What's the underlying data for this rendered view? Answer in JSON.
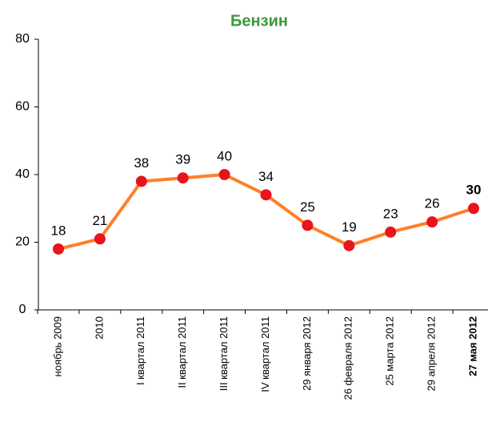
{
  "chart_data": {
    "type": "line",
    "title": "Бензин",
    "categories": [
      "ноябрь 2009",
      "2010",
      "I квартал 2011",
      "II квартал 2011",
      "III квартал 2011",
      "IV квартал 2011",
      "29 января 2012",
      "26 февраля 2012",
      "25 марта 2012",
      "29 апреля 2012",
      "27 мая 2012"
    ],
    "values": [
      18,
      21,
      38,
      39,
      40,
      34,
      25,
      19,
      23,
      26,
      30
    ],
    "color": "#ff7f27",
    "marker_color": "#e8141b",
    "ylim": [
      0,
      80
    ],
    "yticks": [
      0,
      20,
      40,
      60,
      80
    ],
    "grid": false
  }
}
